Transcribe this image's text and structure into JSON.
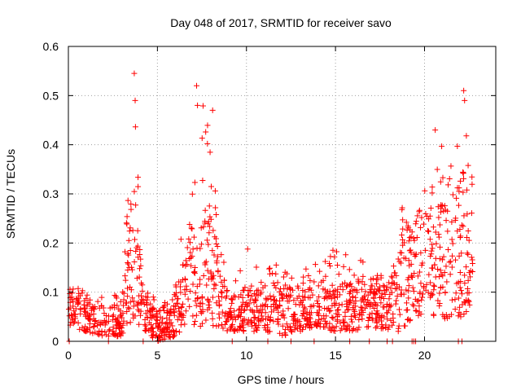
{
  "chart_data": {
    "type": "scatter",
    "title": "Day 048 of 2017, SRMTID for receiver savo",
    "xlabel": "GPS time / hours",
    "ylabel": "SRMTID / TECUs",
    "xlim": [
      0,
      24
    ],
    "ylim": [
      0,
      0.6
    ],
    "xticks": [
      0,
      5,
      10,
      15,
      20
    ],
    "yticks": [
      0,
      0.1,
      0.2,
      0.3,
      0.4,
      0.5,
      0.6
    ],
    "xtick_labels": [
      "0",
      "5",
      "10",
      "15",
      "20"
    ],
    "ytick_labels": [
      "0",
      "0.1",
      "0.2",
      "0.3",
      "0.4",
      "0.5",
      "0.6"
    ],
    "grid": true,
    "legend": "none",
    "marker": "+",
    "series_color": "#ff0000",
    "series": [
      {
        "name": "SRMTID",
        "description": "Approximate envelope of the dense point cloud (hour, typical low, typical high, occasional peak)",
        "envelope": [
          [
            0.0,
            0.03,
            0.1,
            0.12
          ],
          [
            1.0,
            0.02,
            0.08,
            0.1
          ],
          [
            2.0,
            0.01,
            0.07,
            0.09
          ],
          [
            3.0,
            0.01,
            0.07,
            0.1
          ],
          [
            3.7,
            0.05,
            0.33,
            0.545
          ],
          [
            4.2,
            0.02,
            0.1,
            0.14
          ],
          [
            5.0,
            0.0,
            0.06,
            0.08
          ],
          [
            6.0,
            0.01,
            0.09,
            0.11
          ],
          [
            7.0,
            0.03,
            0.25,
            0.52
          ],
          [
            8.0,
            0.03,
            0.26,
            0.47
          ],
          [
            9.0,
            0.02,
            0.1,
            0.14
          ],
          [
            10.0,
            0.02,
            0.11,
            0.19
          ],
          [
            11.0,
            0.02,
            0.1,
            0.16
          ],
          [
            12.0,
            0.01,
            0.12,
            0.16
          ],
          [
            13.0,
            0.02,
            0.11,
            0.15
          ],
          [
            14.0,
            0.03,
            0.13,
            0.18
          ],
          [
            15.0,
            0.02,
            0.12,
            0.19
          ],
          [
            16.0,
            0.02,
            0.12,
            0.17
          ],
          [
            17.0,
            0.03,
            0.12,
            0.16
          ],
          [
            18.0,
            0.02,
            0.11,
            0.14
          ],
          [
            18.6,
            0.02,
            0.2,
            0.3
          ],
          [
            19.5,
            0.05,
            0.23,
            0.29
          ],
          [
            20.5,
            0.05,
            0.3,
            0.43
          ],
          [
            21.5,
            0.04,
            0.28,
            0.37
          ],
          [
            22.2,
            0.05,
            0.35,
            0.51
          ],
          [
            22.7,
            0.05,
            0.25,
            0.33
          ]
        ],
        "peaks": [
          [
            3.7,
            0.545
          ],
          [
            3.75,
            0.49
          ],
          [
            7.2,
            0.52
          ],
          [
            7.25,
            0.48
          ],
          [
            8.1,
            0.47
          ],
          [
            20.6,
            0.43
          ],
          [
            22.2,
            0.51
          ],
          [
            22.25,
            0.49
          ]
        ],
        "zero_points": [
          0.05,
          2.25,
          4.2,
          9.2,
          11.2,
          12.5,
          13.8,
          15.8,
          16.9,
          17.9,
          18.2,
          19.3,
          19.4,
          19.5,
          21.9,
          22.1
        ]
      }
    ]
  }
}
